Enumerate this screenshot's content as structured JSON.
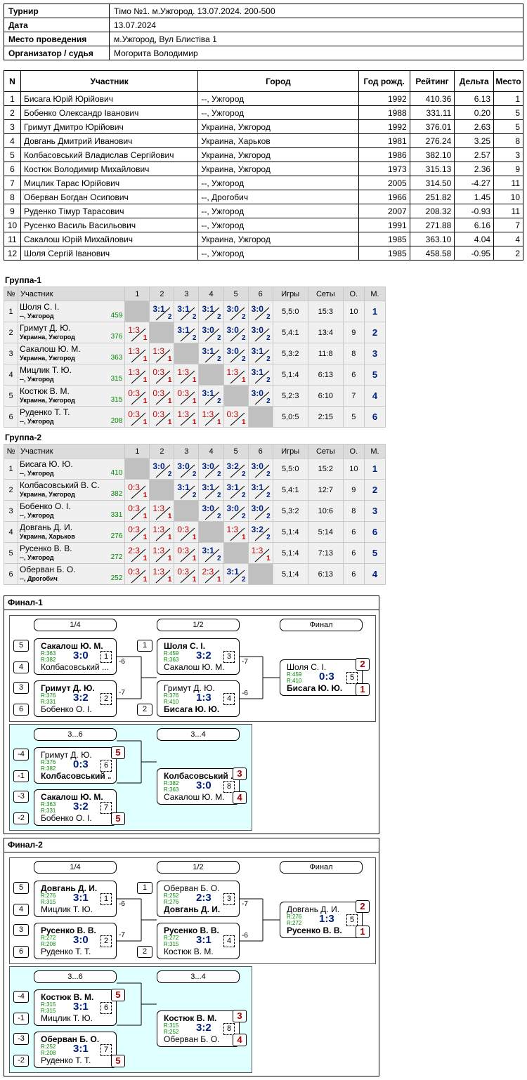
{
  "info": {
    "rows": [
      {
        "label": "Турнир",
        "value": "Тімо №1. м.Ужгород. 13.07.2024. 200-500"
      },
      {
        "label": "Дата",
        "value": "13.07.2024"
      },
      {
        "label": "Место проведения",
        "value": "м.Ужгород, Вул Блистіва 1"
      },
      {
        "label": "Организатор / судья",
        "value": "Могорита Володимир"
      }
    ]
  },
  "players": {
    "headers": [
      "N",
      "Участник",
      "Город",
      "Год рожд.",
      "Рейтинг",
      "Дельта",
      "Место"
    ],
    "rows": [
      [
        "1",
        "Бисага Юрій Юрійович",
        "--, Ужгород",
        "1992",
        "410.36",
        "6.13",
        "1"
      ],
      [
        "2",
        "Бобенко Олександр Іванович",
        "--, Ужгород",
        "1988",
        "331.11",
        "0.20",
        "5"
      ],
      [
        "3",
        "Гримут Дмитро Юрійович",
        "Украина, Ужгород",
        "1992",
        "376.01",
        "2.63",
        "5"
      ],
      [
        "4",
        "Довгань Дмитрий Иванович",
        "Украина, Харьков",
        "1981",
        "276.24",
        "3.25",
        "8"
      ],
      [
        "5",
        "Колбасовський Владислав Сергійович",
        "Украина, Ужгород",
        "1986",
        "382.10",
        "2.57",
        "3"
      ],
      [
        "6",
        "Костюк Володимир Михайлович",
        "Украина, Ужгород",
        "1973",
        "315.13",
        "2.36",
        "9"
      ],
      [
        "7",
        "Мицлик Тарас Юрійович",
        "--, Ужгород",
        "2005",
        "314.50",
        "-4.27",
        "11"
      ],
      [
        "8",
        "Оберван Богдан Осипович",
        "--, Дрогобич",
        "1966",
        "251.82",
        "1.45",
        "10"
      ],
      [
        "9",
        "Руденко Тімур Тарасович",
        "--, Ужгород",
        "2007",
        "208.32",
        "-0.93",
        "11"
      ],
      [
        "10",
        "Русенко Василь Васильович",
        "--, Ужгород",
        "1991",
        "271.88",
        "6.16",
        "7"
      ],
      [
        "11",
        "Сакалош Юрій Михайлович",
        "Украина, Ужгород",
        "1985",
        "363.10",
        "4.04",
        "4"
      ],
      [
        "12",
        "Шоля Сергій Іванович",
        "--, Ужгород",
        "1985",
        "458.58",
        "-0.95",
        "2"
      ]
    ]
  },
  "groups": [
    {
      "title": "Группа-1",
      "headers": [
        "№",
        "Участник",
        "1",
        "2",
        "3",
        "4",
        "5",
        "6",
        "Игры",
        "Сеты",
        "О.",
        "М."
      ],
      "rows": [
        {
          "n": "1",
          "name": "Шоля С. І.",
          "city": "--, Ужгород",
          "rating": "459",
          "scores": [
            null,
            [
              "3:1",
              "2"
            ],
            [
              "3:1",
              "2"
            ],
            [
              "3:1",
              "2"
            ],
            [
              "3:0",
              "2"
            ],
            [
              "3:0",
              "2"
            ]
          ],
          "games": "5,5:0",
          "sets": "15:3",
          "pts": "10",
          "place": "1"
        },
        {
          "n": "2",
          "name": "Гримут Д. Ю.",
          "city": "Украина, Ужгород",
          "rating": "376",
          "scores": [
            [
              "1:3",
              "1"
            ],
            null,
            [
              "3:1",
              "2"
            ],
            [
              "3:0",
              "2"
            ],
            [
              "3:0",
              "2"
            ],
            [
              "3:0",
              "2"
            ]
          ],
          "games": "5,4:1",
          "sets": "13:4",
          "pts": "9",
          "place": "2"
        },
        {
          "n": "3",
          "name": "Сакалош Ю. М.",
          "city": "Украина, Ужгород",
          "rating": "363",
          "scores": [
            [
              "1:3",
              "1"
            ],
            [
              "1:3",
              "1"
            ],
            null,
            [
              "3:1",
              "2"
            ],
            [
              "3:0",
              "2"
            ],
            [
              "3:1",
              "2"
            ]
          ],
          "games": "5,3:2",
          "sets": "11:8",
          "pts": "8",
          "place": "3"
        },
        {
          "n": "4",
          "name": "Мицлик Т. Ю.",
          "city": "--, Ужгород",
          "rating": "315",
          "scores": [
            [
              "1:3",
              "1"
            ],
            [
              "0:3",
              "1"
            ],
            [
              "1:3",
              "1"
            ],
            null,
            [
              "1:3",
              "1"
            ],
            [
              "3:1",
              "2"
            ]
          ],
          "games": "5,1:4",
          "sets": "6:13",
          "pts": "6",
          "place": "5"
        },
        {
          "n": "5",
          "name": "Костюк В. М.",
          "city": "Украина, Ужгород",
          "rating": "315",
          "scores": [
            [
              "0:3",
              "1"
            ],
            [
              "0:3",
              "1"
            ],
            [
              "0:3",
              "1"
            ],
            [
              "3:1",
              "2"
            ],
            null,
            [
              "3:0",
              "2"
            ]
          ],
          "games": "5,2:3",
          "sets": "6:10",
          "pts": "7",
          "place": "4"
        },
        {
          "n": "6",
          "name": "Руденко Т. Т.",
          "city": "--, Ужгород",
          "rating": "208",
          "scores": [
            [
              "0:3",
              "1"
            ],
            [
              "0:3",
              "1"
            ],
            [
              "1:3",
              "1"
            ],
            [
              "1:3",
              "1"
            ],
            [
              "0:3",
              "1"
            ],
            null
          ],
          "games": "5,0:5",
          "sets": "2:15",
          "pts": "5",
          "place": "6"
        }
      ]
    },
    {
      "title": "Группа-2",
      "headers": [
        "№",
        "Участник",
        "1",
        "2",
        "3",
        "4",
        "5",
        "6",
        "Игры",
        "Сеты",
        "О.",
        "М."
      ],
      "rows": [
        {
          "n": "1",
          "name": "Бисага Ю. Ю.",
          "city": "--, Ужгород",
          "rating": "410",
          "scores": [
            null,
            [
              "3:0",
              "2"
            ],
            [
              "3:0",
              "2"
            ],
            [
              "3:0",
              "2"
            ],
            [
              "3:2",
              "2"
            ],
            [
              "3:0",
              "2"
            ]
          ],
          "games": "5,5:0",
          "sets": "15:2",
          "pts": "10",
          "place": "1"
        },
        {
          "n": "2",
          "name": "Колбасовський В. С.",
          "city": "Украина, Ужгород",
          "rating": "382",
          "scores": [
            [
              "0:3",
              "1"
            ],
            null,
            [
              "3:1",
              "2"
            ],
            [
              "3:1",
              "2"
            ],
            [
              "3:1",
              "2"
            ],
            [
              "3:1",
              "2"
            ]
          ],
          "games": "5,4:1",
          "sets": "12:7",
          "pts": "9",
          "place": "2"
        },
        {
          "n": "3",
          "name": "Бобенко О. І.",
          "city": "--, Ужгород",
          "rating": "331",
          "scores": [
            [
              "0:3",
              "1"
            ],
            [
              "1:3",
              "1"
            ],
            null,
            [
              "3:0",
              "2"
            ],
            [
              "3:0",
              "2"
            ],
            [
              "3:0",
              "2"
            ]
          ],
          "games": "5,3:2",
          "sets": "10:6",
          "pts": "8",
          "place": "3"
        },
        {
          "n": "4",
          "name": "Довгань Д. И.",
          "city": "Украина, Харьков",
          "rating": "276",
          "scores": [
            [
              "0:3",
              "1"
            ],
            [
              "1:3",
              "1"
            ],
            [
              "0:3",
              "1"
            ],
            null,
            [
              "1:3",
              "1"
            ],
            [
              "3:2",
              "2"
            ]
          ],
          "games": "5,1:4",
          "sets": "5:14",
          "pts": "6",
          "place": "6"
        },
        {
          "n": "5",
          "name": "Русенко В. В.",
          "city": "--, Ужгород",
          "rating": "272",
          "scores": [
            [
              "2:3",
              "1"
            ],
            [
              "1:3",
              "1"
            ],
            [
              "0:3",
              "1"
            ],
            [
              "3:1",
              "2"
            ],
            null,
            [
              "1:3",
              "1"
            ]
          ],
          "games": "5,1:4",
          "sets": "7:13",
          "pts": "6",
          "place": "5"
        },
        {
          "n": "6",
          "name": "Оберван Б. О.",
          "city": "--, Дрогобич",
          "rating": "252",
          "scores": [
            [
              "0:3",
              "1"
            ],
            [
              "1:3",
              "1"
            ],
            [
              "0:3",
              "1"
            ],
            [
              "2:3",
              "1"
            ],
            [
              "3:1",
              "2"
            ],
            null
          ],
          "games": "5,1:4",
          "sets": "6:13",
          "pts": "6",
          "place": "4"
        }
      ]
    }
  ],
  "finals": [
    {
      "title": "Финал-1",
      "rounds": [
        "1/4",
        "1/2",
        "Финал"
      ],
      "consol": [
        "3...6",
        "3...4"
      ],
      "matches": [
        {
          "p1": "Сакалош Ю. М.",
          "r1": "R:363",
          "p2": "Колбасовський ...",
          "r2": "R:382",
          "score": "3:0",
          "num": "1",
          "w": 1
        },
        {
          "p1": "Гримут Д. Ю.",
          "r1": "R:376",
          "p2": "Бобенко О. І.",
          "r2": "R:331",
          "score": "3:2",
          "num": "2",
          "w": 1
        },
        {
          "p1": "Шоля С. І.",
          "r1": "R:459",
          "p2": "Сакалош Ю. М.",
          "r2": "R:363",
          "score": "3:2",
          "num": "3",
          "w": 1
        },
        {
          "p1": "Гримут Д. Ю.",
          "r1": "R:376",
          "p2": "Бисага Ю. Ю.",
          "r2": "R:410",
          "score": "1:3",
          "num": "4",
          "w": 2
        },
        {
          "p1": "Шоля С. І.",
          "r1": "R:459",
          "p2": "Бисага Ю. Ю.",
          "r2": "R:410",
          "score": "0:3",
          "num": "5",
          "w": 2
        },
        {
          "p1": "Гримут Д. Ю.",
          "r1": "R:376",
          "p2": "Колбасовський ...",
          "r2": "R:382",
          "score": "0:3",
          "num": "6",
          "w": 2
        },
        {
          "p1": "Сакалош Ю. М.",
          "r1": "R:363",
          "p2": "Бобенко О. І.",
          "r2": "R:331",
          "score": "3:2",
          "num": "7",
          "w": 1
        },
        {
          "p1": "Колбасовський ...",
          "r1": "R:382",
          "p2": "Сакалош Ю. М.",
          "r2": "R:363",
          "score": "3:0",
          "num": "8",
          "w": 1
        }
      ],
      "seeds": [
        "5",
        "4",
        "3",
        "6",
        "1",
        "2",
        "-4",
        "-1",
        "-3",
        "-2"
      ],
      "losers": [
        "-6",
        "-7",
        "-7",
        "-6"
      ],
      "places": [
        "2",
        "1",
        "5",
        "5",
        "3",
        "4"
      ]
    },
    {
      "title": "Финал-2",
      "rounds": [
        "1/4",
        "1/2",
        "Финал"
      ],
      "consol": [
        "3...6",
        "3...4"
      ],
      "matches": [
        {
          "p1": "Довгань Д. И.",
          "r1": "R:276",
          "p2": "Мицлик Т. Ю.",
          "r2": "R:315",
          "score": "3:1",
          "num": "1",
          "w": 1
        },
        {
          "p1": "Русенко В. В.",
          "r1": "R:272",
          "p2": "Руденко Т. Т.",
          "r2": "R:208",
          "score": "3:0",
          "num": "2",
          "w": 1
        },
        {
          "p1": "Оберван Б. О.",
          "r1": "R:252",
          "p2": "Довгань Д. И.",
          "r2": "R:276",
          "score": "2:3",
          "num": "3",
          "w": 2
        },
        {
          "p1": "Русенко В. В.",
          "r1": "R:272",
          "p2": "Костюк В. М.",
          "r2": "R:315",
          "score": "3:1",
          "num": "4",
          "w": 1
        },
        {
          "p1": "Довгань Д. И.",
          "r1": "R:276",
          "p2": "Русенко В. В.",
          "r2": "R:272",
          "score": "1:3",
          "num": "5",
          "w": 2
        },
        {
          "p1": "Костюк В. М.",
          "r1": "R:315",
          "p2": "Мицлик Т. Ю.",
          "r2": "R:315",
          "score": "3:1",
          "num": "6",
          "w": 1
        },
        {
          "p1": "Оберван Б. О.",
          "r1": "R:252",
          "p2": "Руденко Т. Т.",
          "r2": "R:208",
          "score": "3:1",
          "num": "7",
          "w": 1
        },
        {
          "p1": "Костюк В. М.",
          "r1": "R:315",
          "p2": "Оберван Б. О.",
          "r2": "R:252",
          "score": "3:2",
          "num": "8",
          "w": 1
        }
      ],
      "seeds": [
        "5",
        "4",
        "3",
        "6",
        "1",
        "2",
        "-4",
        "-1",
        "-3",
        "-2"
      ],
      "losers": [
        "-6",
        "-7",
        "-7",
        "-6"
      ],
      "places": [
        "2",
        "1",
        "5",
        "5",
        "3",
        "4"
      ]
    }
  ]
}
